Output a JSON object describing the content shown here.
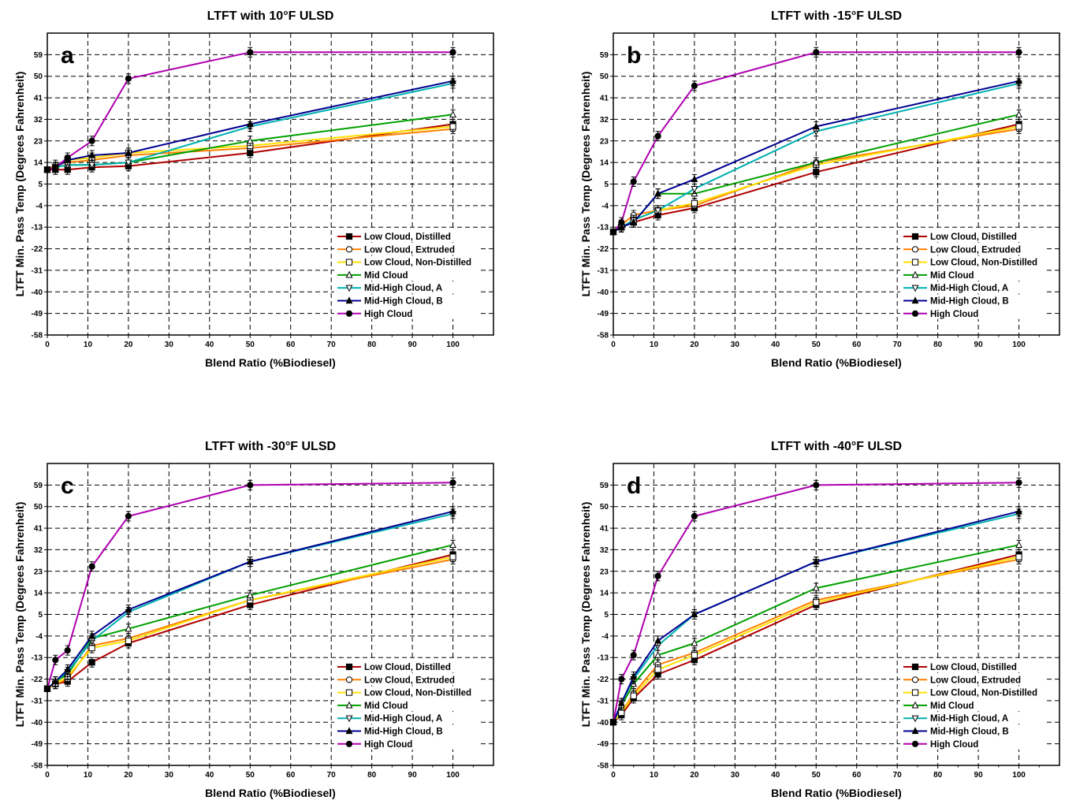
{
  "chart_data": [
    {
      "type": "line",
      "panel_label": "a",
      "title": "LTFT with 10°F ULSD",
      "xlabel": "Blend Ratio (%Biodiesel)",
      "ylabel": "LTFT Min. Pass Temp (Degrees Fahrenheit)",
      "xlim": [
        0,
        110
      ],
      "ylim": [
        -58,
        68
      ],
      "xticks": [
        0,
        10,
        20,
        30,
        40,
        50,
        60,
        70,
        80,
        90,
        100
      ],
      "yticks": [
        -58,
        -49,
        -40,
        -31,
        -22,
        -13,
        -4,
        5,
        14,
        23,
        32,
        41,
        50,
        59
      ],
      "grid": true,
      "legend_position": "lower-right",
      "x": [
        0,
        2,
        5,
        11,
        20,
        50,
        100
      ],
      "series": [
        {
          "name": "Low Cloud, Distilled",
          "color": "#b00000",
          "marker": "square-filled",
          "values": [
            11,
            11,
            11,
            12,
            12.5,
            18,
            30
          ]
        },
        {
          "name": "Low Cloud, Extruded",
          "color": "#ff8000",
          "marker": "circle-open",
          "values": [
            11,
            13,
            14,
            15,
            17,
            20,
            28
          ]
        },
        {
          "name": "Low Cloud, Non-Distilled",
          "color": "#ffe000",
          "marker": "square-open",
          "values": [
            11,
            12,
            15,
            16,
            18,
            21,
            29
          ]
        },
        {
          "name": "Mid Cloud",
          "color": "#00a000",
          "marker": "triangle-up-open",
          "values": [
            11,
            12,
            13,
            13,
            14,
            23,
            34
          ]
        },
        {
          "name": "Mid-High Cloud, A",
          "color": "#00b0b0",
          "marker": "triangle-down-open",
          "values": [
            11,
            12,
            13,
            13,
            14,
            29,
            47
          ]
        },
        {
          "name": "Mid-High Cloud, B",
          "color": "#000090",
          "marker": "triangle-up-filled",
          "values": [
            11,
            12,
            15,
            17,
            18,
            30,
            48
          ]
        },
        {
          "name": "High Cloud",
          "color": "#b000b0",
          "marker": "circle-filled",
          "values": [
            11,
            12,
            16,
            23,
            49,
            60,
            60
          ]
        }
      ]
    },
    {
      "type": "line",
      "panel_label": "b",
      "title": "LTFT with -15°F ULSD",
      "xlabel": "Blend Ratio (%Biodiesel)",
      "ylabel": "LTFT Min. Pass Temp (Degrees Fahrenheit)",
      "xlim": [
        0,
        110
      ],
      "ylim": [
        -58,
        68
      ],
      "xticks": [
        0,
        10,
        20,
        30,
        40,
        50,
        60,
        70,
        80,
        90,
        100
      ],
      "yticks": [
        -58,
        -49,
        -40,
        -31,
        -22,
        -13,
        -4,
        5,
        14,
        23,
        32,
        41,
        50,
        59
      ],
      "grid": true,
      "legend_position": "lower-right",
      "x": [
        0,
        2,
        5,
        11,
        20,
        50,
        100
      ],
      "series": [
        {
          "name": "Low Cloud, Distilled",
          "color": "#b00000",
          "marker": "square-filled",
          "values": [
            -15,
            -13,
            -11,
            -8,
            -5,
            10,
            30
          ]
        },
        {
          "name": "Low Cloud, Extruded",
          "color": "#ff8000",
          "marker": "circle-open",
          "values": [
            -15,
            -12,
            -8,
            -6,
            -4,
            14,
            28
          ]
        },
        {
          "name": "Low Cloud, Non-Distilled",
          "color": "#ffe000",
          "marker": "square-open",
          "values": [
            -15,
            -13,
            -10,
            -6,
            -3,
            13,
            29
          ]
        },
        {
          "name": "Mid Cloud",
          "color": "#00a000",
          "marker": "triangle-up-open",
          "values": [
            -15,
            -13,
            -11,
            1,
            1,
            14,
            34
          ]
        },
        {
          "name": "Mid-High Cloud, A",
          "color": "#00b0b0",
          "marker": "triangle-down-open",
          "values": [
            -15,
            -13,
            -10,
            -6,
            3,
            27,
            47
          ]
        },
        {
          "name": "Mid-High Cloud, B",
          "color": "#000090",
          "marker": "triangle-up-filled",
          "values": [
            -15,
            -13,
            -11,
            1,
            7,
            29,
            48
          ]
        },
        {
          "name": "High Cloud",
          "color": "#b000b0",
          "marker": "circle-filled",
          "values": [
            -15,
            -11,
            6,
            25,
            46,
            60,
            60
          ]
        }
      ]
    },
    {
      "type": "line",
      "panel_label": "c",
      "title": "LTFT with -30°F ULSD",
      "xlabel": "Blend Ratio (%Biodiesel)",
      "ylabel": "LTFT Min. Pass Temp (Degrees Fahrenheit)",
      "xlim": [
        0,
        110
      ],
      "ylim": [
        -58,
        68
      ],
      "xticks": [
        0,
        10,
        20,
        30,
        40,
        50,
        60,
        70,
        80,
        90,
        100
      ],
      "yticks": [
        -58,
        -49,
        -40,
        -31,
        -22,
        -13,
        -4,
        5,
        14,
        23,
        32,
        41,
        50,
        59
      ],
      "grid": true,
      "legend_position": "lower-right",
      "x": [
        0,
        2,
        5,
        11,
        20,
        50,
        100
      ],
      "series": [
        {
          "name": "Low Cloud, Distilled",
          "color": "#b00000",
          "marker": "square-filled",
          "values": [
            -26,
            -24,
            -23,
            -15,
            -7,
            9,
            30
          ]
        },
        {
          "name": "Low Cloud, Extruded",
          "color": "#ff8000",
          "marker": "circle-open",
          "values": [
            -26,
            -24,
            -22,
            -8,
            -5,
            11,
            28
          ]
        },
        {
          "name": "Low Cloud, Non-Distilled",
          "color": "#ffe000",
          "marker": "square-open",
          "values": [
            -26,
            -24,
            -21,
            -9,
            -6,
            11,
            29
          ]
        },
        {
          "name": "Mid Cloud",
          "color": "#00a000",
          "marker": "triangle-up-open",
          "values": [
            -26,
            -23,
            -20,
            -5,
            -1,
            13,
            34
          ]
        },
        {
          "name": "Mid-High Cloud, A",
          "color": "#00b0b0",
          "marker": "triangle-down-open",
          "values": [
            -26,
            -23,
            -19,
            -6,
            6,
            27,
            47
          ]
        },
        {
          "name": "Mid-High Cloud, B",
          "color": "#000090",
          "marker": "triangle-up-filled",
          "values": [
            -26,
            -23,
            -18,
            -4,
            7,
            27,
            48
          ]
        },
        {
          "name": "High Cloud",
          "color": "#b000b0",
          "marker": "circle-filled",
          "values": [
            -26,
            -14,
            -10,
            25,
            46,
            59,
            60
          ]
        }
      ]
    },
    {
      "type": "line",
      "panel_label": "d",
      "title": "LTFT with -40°F ULSD",
      "xlabel": "Blend Ratio (%Biodiesel)",
      "ylabel": "LTFT Min. Pass Temp (Degrees Fahrenheit)",
      "xlim": [
        0,
        110
      ],
      "ylim": [
        -58,
        68
      ],
      "xticks": [
        0,
        10,
        20,
        30,
        40,
        50,
        60,
        70,
        80,
        90,
        100
      ],
      "yticks": [
        -58,
        -49,
        -40,
        -31,
        -22,
        -13,
        -4,
        5,
        14,
        23,
        32,
        41,
        50,
        59
      ],
      "grid": true,
      "legend_position": "lower-right",
      "x": [
        0,
        2,
        5,
        11,
        20,
        50,
        100
      ],
      "series": [
        {
          "name": "Low Cloud, Distilled",
          "color": "#b00000",
          "marker": "square-filled",
          "values": [
            -40,
            -37,
            -30,
            -20,
            -14,
            9,
            30
          ]
        },
        {
          "name": "Low Cloud, Extruded",
          "color": "#ff8000",
          "marker": "circle-open",
          "values": [
            -40,
            -36,
            -28,
            -16,
            -11,
            11,
            28
          ]
        },
        {
          "name": "Low Cloud, Non-Distilled",
          "color": "#ffe000",
          "marker": "square-open",
          "values": [
            -40,
            -36,
            -29,
            -18,
            -12,
            10,
            29
          ]
        },
        {
          "name": "Mid Cloud",
          "color": "#00a000",
          "marker": "triangle-up-open",
          "values": [
            -40,
            -33,
            -24,
            -12,
            -7,
            16,
            34
          ]
        },
        {
          "name": "Mid-High Cloud, A",
          "color": "#00b0b0",
          "marker": "triangle-down-open",
          "values": [
            -40,
            -32,
            -22,
            -8,
            5,
            27,
            47
          ]
        },
        {
          "name": "Mid-High Cloud, B",
          "color": "#000090",
          "marker": "triangle-up-filled",
          "values": [
            -40,
            -32,
            -21,
            -6,
            5,
            27,
            48
          ]
        },
        {
          "name": "High Cloud",
          "color": "#b000b0",
          "marker": "circle-filled",
          "values": [
            -40,
            -22,
            -12,
            21,
            46,
            59,
            60
          ]
        }
      ]
    }
  ]
}
